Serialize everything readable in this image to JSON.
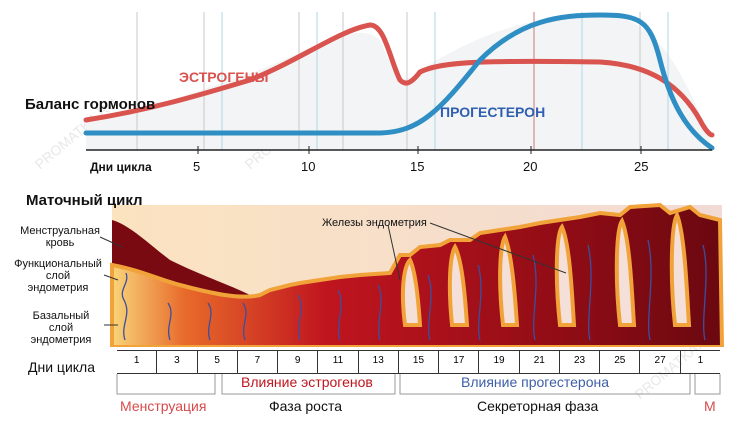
{
  "hormone_panel": {
    "title": "Баланс гормонов",
    "estrogen_label": "ЭСТРОГЕНЫ",
    "progesterone_label": "ПРОГЕСТЕРОН",
    "axis_label": "Дни цикла",
    "ticks": [
      "5",
      "10",
      "15",
      "20",
      "25"
    ],
    "colors": {
      "estrogen": "#d9534f",
      "progesterone": "#2f8fc4",
      "axis": "#222222"
    }
  },
  "uterine_panel": {
    "title": "Маточный цикл",
    "label_menstrual_blood": [
      "Менструальная",
      "кровь"
    ],
    "label_functional_layer": [
      "Функциональный",
      "слой",
      "эндометрия"
    ],
    "label_basal_layer": [
      "Базальный",
      "слой",
      "эндометрия"
    ],
    "label_glands": "Железы эндометрия",
    "colors": {
      "tissue_dark": "#7a0a12",
      "tissue_mid": "#c0151f",
      "tissue_light": "#f6c36a",
      "outline": "#f1a33a"
    }
  },
  "day_strip": {
    "label": "Дни цикла",
    "days": [
      "1",
      "3",
      "5",
      "7",
      "9",
      "11",
      "13",
      "15",
      "17",
      "19",
      "21",
      "23",
      "25",
      "27",
      "1"
    ]
  },
  "phases": {
    "estrogen_influence": "Влияние эстрогенов",
    "progesterone_influence": "Влияние прогестерона",
    "menstruation": "Менструация",
    "growth": "Фаза роста",
    "secretory": "Секреторная фаза",
    "m": "М",
    "colors": {
      "menstruation": "#d84a4a",
      "estrogen_influence": "#c0151f",
      "progesterone_influence": "#3d5fa8"
    }
  },
  "watermark": "PROMATKA.RU"
}
